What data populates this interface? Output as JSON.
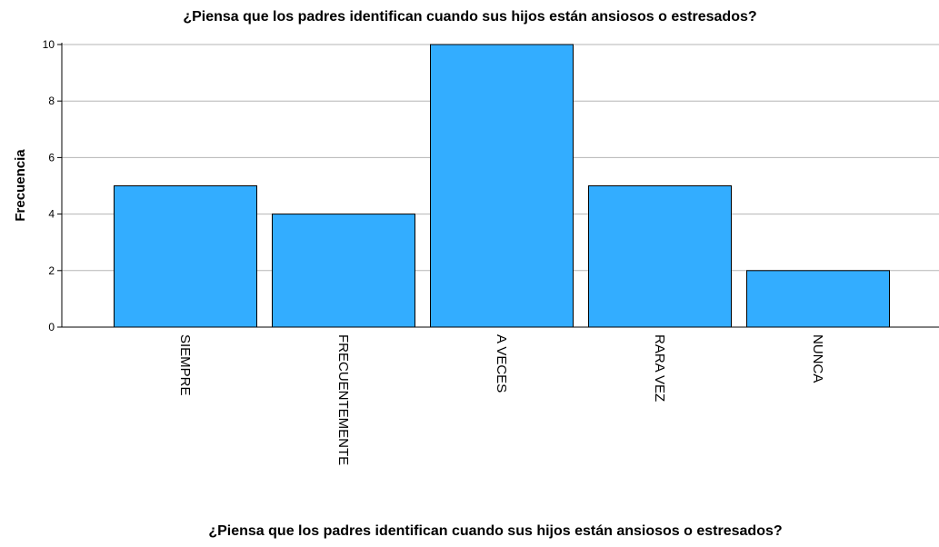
{
  "chart_data": {
    "type": "bar",
    "title": "¿Piensa que los padres identifican cuando sus hijos están ansiosos o estresados?",
    "xlabel": "¿Piensa que los padres identifican cuando sus hijos están ansiosos o estresados?",
    "ylabel": "Frecuencia",
    "categories": [
      "SIEMPRE",
      "FRECUENTEMENTE",
      "A VECES",
      "RARA VEZ",
      "NUNCA"
    ],
    "values": [
      5,
      4,
      10,
      5,
      2
    ],
    "ylim": [
      0,
      10
    ],
    "yticks": [
      0,
      2,
      4,
      6,
      8,
      10
    ],
    "grid": true,
    "legend": "none",
    "colors": {
      "bar_fill": "#33adff",
      "bar_stroke": "#000000",
      "grid": "#b5b5b5",
      "axis": "#000000",
      "text": "#000000"
    }
  }
}
